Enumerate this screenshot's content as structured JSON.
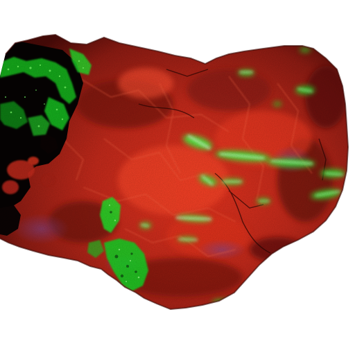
{
  "image": {
    "subject": "fluorescent-mineral-specimen",
    "background_color": "#ffffff",
    "colors": {
      "red_fluorescence_dark": "#5e0f0c",
      "red_fluorescence_mid": "#b8261a",
      "red_fluorescence_bright": "#ff3a22",
      "green_fluorescence": "#1eea2a",
      "green_glow_core": "#b6ffb0",
      "shadow_black": "#050505",
      "violet_tint": "#6a3a7a"
    }
  }
}
